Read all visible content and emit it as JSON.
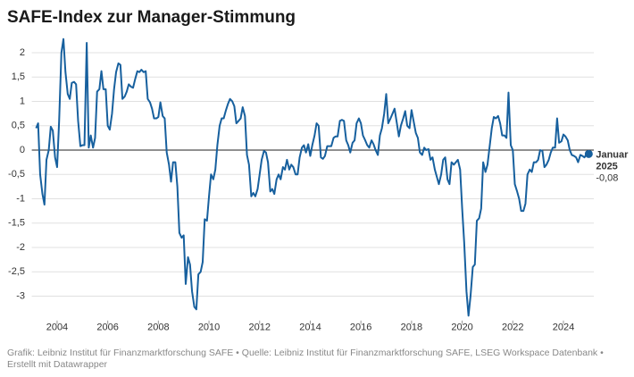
{
  "chart_data": {
    "type": "line",
    "title": "SAFE-Index zur Manager-Stimmung",
    "source": "Grafik: Leibniz Institut für Finanzmarktforschung SAFE • Quelle: Leibniz Institut für Finanzmarktforschung SAFE, LSEG Workspace Datenbank • Erstellt mit Datawrapper",
    "color": "#17609e",
    "grid": true,
    "xlim": [
      2003,
      2025.2
    ],
    "xticks": [
      2004,
      2006,
      2008,
      2010,
      2012,
      2014,
      2016,
      2018,
      2020,
      2022,
      2024
    ],
    "ylim": [
      -3.5,
      2.3
    ],
    "yticks": [
      2,
      {
        "value": 1.5,
        "label": "1,5"
      },
      1,
      {
        "value": 0.5,
        "label": "0,5"
      },
      0,
      {
        "value": -0.5,
        "label": "-0,5"
      },
      -1,
      {
        "value": -1.5,
        "label": "-1,5"
      },
      -2,
      {
        "value": -2.5,
        "label": "-2,5"
      },
      -3
    ],
    "x": [
      2003.17,
      2003.25,
      2003.33,
      2003.42,
      2003.5,
      2003.58,
      2003.67,
      2003.75,
      2003.83,
      2003.92,
      2004.0,
      2004.08,
      2004.17,
      2004.25,
      2004.33,
      2004.42,
      2004.5,
      2004.58,
      2004.67,
      2004.75,
      2004.83,
      2004.92,
      2005.0,
      2005.08,
      2005.17,
      2005.25,
      2005.33,
      2005.42,
      2005.5,
      2005.58,
      2005.67,
      2005.75,
      2005.83,
      2005.92,
      2006.0,
      2006.08,
      2006.17,
      2006.25,
      2006.33,
      2006.42,
      2006.5,
      2006.58,
      2006.67,
      2006.75,
      2006.83,
      2006.92,
      2007.0,
      2007.08,
      2007.17,
      2007.25,
      2007.33,
      2007.42,
      2007.5,
      2007.58,
      2007.67,
      2007.75,
      2007.83,
      2007.92,
      2008.0,
      2008.08,
      2008.17,
      2008.25,
      2008.33,
      2008.42,
      2008.5,
      2008.58,
      2008.67,
      2008.75,
      2008.83,
      2008.92,
      2009.0,
      2009.08,
      2009.17,
      2009.25,
      2009.33,
      2009.42,
      2009.5,
      2009.58,
      2009.67,
      2009.75,
      2009.83,
      2009.92,
      2010.0,
      2010.08,
      2010.17,
      2010.25,
      2010.33,
      2010.42,
      2010.5,
      2010.58,
      2010.67,
      2010.75,
      2010.83,
      2010.92,
      2011.0,
      2011.08,
      2011.17,
      2011.25,
      2011.33,
      2011.42,
      2011.5,
      2011.58,
      2011.67,
      2011.75,
      2011.83,
      2011.92,
      2012.0,
      2012.08,
      2012.17,
      2012.25,
      2012.33,
      2012.42,
      2012.5,
      2012.58,
      2012.67,
      2012.75,
      2012.83,
      2012.92,
      2013.0,
      2013.08,
      2013.17,
      2013.25,
      2013.33,
      2013.42,
      2013.5,
      2013.58,
      2013.67,
      2013.75,
      2013.83,
      2013.92,
      2014.0,
      2014.08,
      2014.17,
      2014.25,
      2014.33,
      2014.42,
      2014.5,
      2014.58,
      2014.67,
      2014.75,
      2014.83,
      2014.92,
      2015.0,
      2015.08,
      2015.17,
      2015.25,
      2015.33,
      2015.42,
      2015.5,
      2015.58,
      2015.67,
      2015.75,
      2015.83,
      2015.92,
      2016.0,
      2016.08,
      2016.17,
      2016.25,
      2016.33,
      2016.42,
      2016.5,
      2016.58,
      2016.67,
      2016.75,
      2016.83,
      2016.92,
      2017.0,
      2017.08,
      2017.17,
      2017.25,
      2017.33,
      2017.42,
      2017.5,
      2017.58,
      2017.67,
      2017.75,
      2017.83,
      2017.92,
      2018.0,
      2018.08,
      2018.17,
      2018.25,
      2018.33,
      2018.42,
      2018.5,
      2018.58,
      2018.67,
      2018.75,
      2018.83,
      2018.92,
      2019.0,
      2019.08,
      2019.17,
      2019.25,
      2019.33,
      2019.42,
      2019.5,
      2019.58,
      2019.67,
      2019.75,
      2019.83,
      2019.92,
      2020.0,
      2020.08,
      2020.17,
      2020.25,
      2020.33,
      2020.42,
      2020.5,
      2020.58,
      2020.67,
      2020.75,
      2020.83,
      2020.92,
      2021.0,
      2021.08,
      2021.17,
      2021.25,
      2021.33,
      2021.42,
      2021.5,
      2021.58,
      2021.67,
      2021.75,
      2021.83,
      2021.92,
      2022.0,
      2022.08,
      2022.17,
      2022.25,
      2022.33,
      2022.42,
      2022.5,
      2022.58,
      2022.67,
      2022.75,
      2022.83,
      2022.92,
      2023.0,
      2023.08,
      2023.17,
      2023.25,
      2023.33,
      2023.42,
      2023.5,
      2023.58,
      2023.67,
      2023.75,
      2023.83,
      2023.92,
      2024.0,
      2024.08,
      2024.17,
      2024.25,
      2024.33,
      2024.42,
      2024.5,
      2024.58,
      2024.67,
      2024.75,
      2024.83,
      2024.92,
      2025.0
    ],
    "values": [
      0.45,
      0.55,
      -0.5,
      -0.9,
      -1.12,
      -0.2,
      0.0,
      0.48,
      0.4,
      -0.15,
      -0.35,
      0.6,
      2.0,
      2.28,
      1.6,
      1.15,
      1.05,
      1.38,
      1.4,
      1.35,
      0.6,
      0.08,
      0.1,
      0.1,
      2.2,
      0.05,
      0.3,
      0.05,
      0.25,
      1.2,
      1.25,
      1.62,
      1.25,
      1.25,
      0.5,
      0.42,
      0.75,
      1.25,
      1.6,
      1.78,
      1.75,
      1.05,
      1.1,
      1.2,
      1.35,
      1.3,
      1.28,
      1.45,
      1.62,
      1.6,
      1.65,
      1.6,
      1.62,
      1.05,
      0.98,
      0.85,
      0.65,
      0.65,
      0.68,
      0.98,
      0.7,
      0.65,
      -0.05,
      -0.3,
      -0.65,
      -0.25,
      -0.25,
      -0.75,
      -1.7,
      -1.8,
      -1.75,
      -2.75,
      -2.2,
      -2.35,
      -2.9,
      -3.22,
      -3.27,
      -2.55,
      -2.5,
      -2.3,
      -1.42,
      -1.45,
      -0.95,
      -0.5,
      -0.6,
      -0.4,
      0.1,
      0.5,
      0.65,
      0.65,
      0.82,
      0.95,
      1.05,
      1.0,
      0.9,
      0.55,
      0.6,
      0.65,
      0.88,
      0.7,
      -0.1,
      -0.3,
      -0.95,
      -0.88,
      -0.95,
      -0.8,
      -0.5,
      -0.2,
      -0.02,
      -0.05,
      -0.25,
      -0.85,
      -0.8,
      -0.9,
      -0.6,
      -0.5,
      -0.6,
      -0.35,
      -0.4,
      -0.2,
      -0.4,
      -0.3,
      -0.35,
      -0.5,
      -0.5,
      -0.15,
      0.05,
      0.1,
      -0.05,
      0.12,
      -0.12,
      0.1,
      0.3,
      0.55,
      0.5,
      -0.15,
      -0.18,
      -0.12,
      0.08,
      0.08,
      0.08,
      0.25,
      0.28,
      0.28,
      0.6,
      0.62,
      0.6,
      0.2,
      0.1,
      -0.05,
      0.15,
      0.2,
      0.55,
      0.65,
      0.55,
      0.3,
      0.2,
      0.1,
      0.05,
      0.2,
      0.12,
      0.0,
      -0.1,
      0.3,
      0.45,
      0.75,
      1.15,
      0.55,
      0.65,
      0.75,
      0.85,
      0.55,
      0.28,
      0.5,
      0.65,
      0.8,
      0.5,
      0.45,
      0.82,
      0.6,
      0.35,
      0.25,
      -0.05,
      -0.1,
      0.05,
      0.0,
      0.02,
      -0.2,
      -0.15,
      -0.4,
      -0.55,
      -0.7,
      -0.5,
      -0.2,
      -0.15,
      -0.6,
      -0.7,
      -0.25,
      -0.3,
      -0.25,
      -0.2,
      -0.4,
      -1.2,
      -1.9,
      -2.9,
      -3.4,
      -3.0,
      -2.4,
      -2.35,
      -1.45,
      -1.4,
      -1.2,
      -0.25,
      -0.45,
      -0.3,
      0.05,
      0.45,
      0.68,
      0.65,
      0.7,
      0.55,
      0.3,
      0.3,
      0.25,
      1.18,
      0.1,
      0.0,
      -0.7,
      -0.85,
      -1.0,
      -1.25,
      -1.25,
      -1.1,
      -0.5,
      -0.4,
      -0.45,
      -0.25,
      -0.25,
      -0.2,
      0.0,
      -0.02,
      -0.35,
      -0.3,
      -0.2,
      -0.05,
      0.05,
      0.05,
      0.65,
      0.15,
      0.18,
      0.32,
      0.28,
      0.2,
      0.0,
      -0.1,
      -0.12,
      -0.15,
      -0.25,
      -0.1,
      -0.12,
      -0.15,
      -0.08,
      -0.08
    ],
    "annotation": {
      "x": 2025.0,
      "y": -0.08,
      "label": [
        "Januar",
        "2025"
      ],
      "value_label": "-0,08"
    }
  }
}
